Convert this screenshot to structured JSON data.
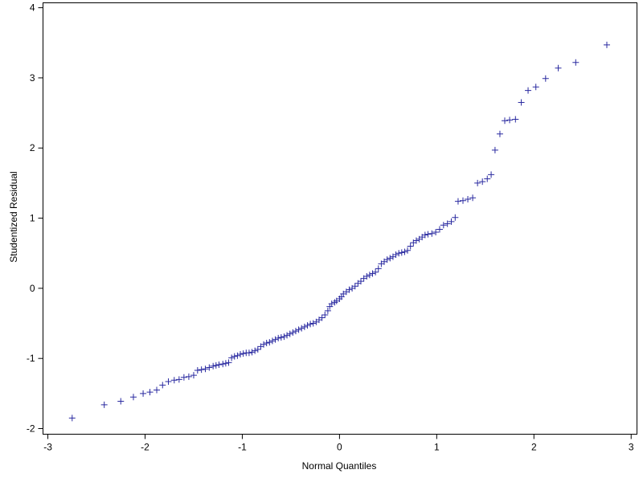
{
  "chart_data": {
    "type": "scatter",
    "xlabel": "Normal Quantiles",
    "ylabel": "Studentized Residual",
    "marker": "plus",
    "color": "#2a2aa0",
    "xlim": [
      -3.05,
      3.06
    ],
    "ylim": [
      -2.08,
      4.07
    ],
    "xticks": [
      -3,
      -2,
      -1,
      0,
      1,
      2,
      3
    ],
    "yticks": [
      -2,
      -1,
      0,
      1,
      2,
      3,
      4
    ],
    "x": [
      -2.75,
      -2.42,
      -2.25,
      -2.12,
      -2.02,
      -1.95,
      -1.88,
      -1.82,
      -1.76,
      -1.7,
      -1.65,
      -1.6,
      -1.55,
      -1.5,
      -1.46,
      -1.42,
      -1.38,
      -1.34,
      -1.3,
      -1.27,
      -1.24,
      -1.2,
      -1.17,
      -1.14,
      -1.11,
      -1.08,
      -1.05,
      -1.02,
      -0.99,
      -0.96,
      -0.93,
      -0.9,
      -0.87,
      -0.84,
      -0.81,
      -0.78,
      -0.75,
      -0.72,
      -0.69,
      -0.66,
      -0.63,
      -0.6,
      -0.57,
      -0.54,
      -0.51,
      -0.48,
      -0.45,
      -0.42,
      -0.39,
      -0.36,
      -0.33,
      -0.3,
      -0.27,
      -0.24,
      -0.21,
      -0.18,
      -0.15,
      -0.12,
      -0.1,
      -0.08,
      -0.05,
      -0.03,
      0.0,
      0.02,
      0.04,
      0.07,
      0.1,
      0.13,
      0.16,
      0.19,
      0.22,
      0.25,
      0.28,
      0.31,
      0.34,
      0.37,
      0.4,
      0.43,
      0.46,
      0.49,
      0.52,
      0.55,
      0.58,
      0.61,
      0.64,
      0.67,
      0.7,
      0.73,
      0.76,
      0.79,
      0.82,
      0.85,
      0.88,
      0.91,
      0.95,
      0.99,
      1.03,
      1.07,
      1.11,
      1.15,
      1.19,
      1.22,
      1.27,
      1.32,
      1.37,
      1.42,
      1.47,
      1.52,
      1.56,
      1.6,
      1.65,
      1.7,
      1.75,
      1.81,
      1.87,
      1.94,
      2.02,
      2.12,
      2.25,
      2.43,
      2.75
    ],
    "y": [
      -1.85,
      -1.66,
      -1.61,
      -1.55,
      -1.5,
      -1.48,
      -1.45,
      -1.38,
      -1.33,
      -1.31,
      -1.3,
      -1.27,
      -1.26,
      -1.24,
      -1.17,
      -1.16,
      -1.15,
      -1.13,
      -1.11,
      -1.1,
      -1.09,
      -1.08,
      -1.07,
      -1.06,
      -0.99,
      -0.97,
      -0.96,
      -0.94,
      -0.93,
      -0.92,
      -0.92,
      -0.91,
      -0.89,
      -0.87,
      -0.83,
      -0.8,
      -0.78,
      -0.77,
      -0.75,
      -0.73,
      -0.71,
      -0.7,
      -0.69,
      -0.67,
      -0.65,
      -0.63,
      -0.61,
      -0.59,
      -0.57,
      -0.55,
      -0.53,
      -0.51,
      -0.5,
      -0.48,
      -0.45,
      -0.42,
      -0.38,
      -0.32,
      -0.26,
      -0.22,
      -0.2,
      -0.18,
      -0.15,
      -0.12,
      -0.08,
      -0.05,
      -0.02,
      0.0,
      0.03,
      0.07,
      0.1,
      0.14,
      0.17,
      0.19,
      0.21,
      0.23,
      0.28,
      0.35,
      0.38,
      0.41,
      0.43,
      0.45,
      0.48,
      0.5,
      0.51,
      0.52,
      0.54,
      0.6,
      0.65,
      0.68,
      0.7,
      0.73,
      0.76,
      0.77,
      0.78,
      0.8,
      0.84,
      0.9,
      0.92,
      0.95,
      1.01,
      1.24,
      1.25,
      1.27,
      1.29,
      1.5,
      1.52,
      1.56,
      1.62,
      1.97,
      2.2,
      2.39,
      2.4,
      2.41,
      2.65,
      2.82,
      2.87,
      2.99,
      3.14,
      3.22,
      3.47
    ]
  }
}
